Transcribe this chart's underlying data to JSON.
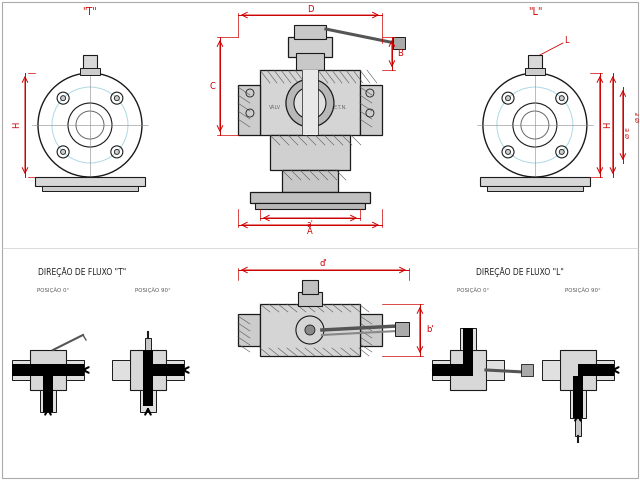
{
  "bg_color": "#ffffff",
  "line_color": "#1a1a1a",
  "dim_color": "#cc0000",
  "hatch_color": "#555555",
  "light_blue": "#add8e6",
  "title_T": "\"T\"",
  "title_L": "\"L\"",
  "dim_labels": {
    "D": "D",
    "B": "B",
    "C": "C",
    "A": "A",
    "a_prime": "a'",
    "H_left": "H",
    "H_right": "H",
    "L": "L",
    "phi_E": "Ø E",
    "phi_F": "Ø F",
    "d_prime": "d'",
    "b_prime": "b'"
  },
  "text_T_direction": "DIREÇÃO DE FLUXO \"T\"",
  "text_L_direction": "DIREÇÃO DE FLUXO \"L\"",
  "pos_0_T": "POSIÇÃO 0°",
  "pos_90_T": "POSIÇÃO 90°",
  "pos_0_L": "POSIÇÃO 0°",
  "pos_90_L": "POSIÇÃO 90°"
}
